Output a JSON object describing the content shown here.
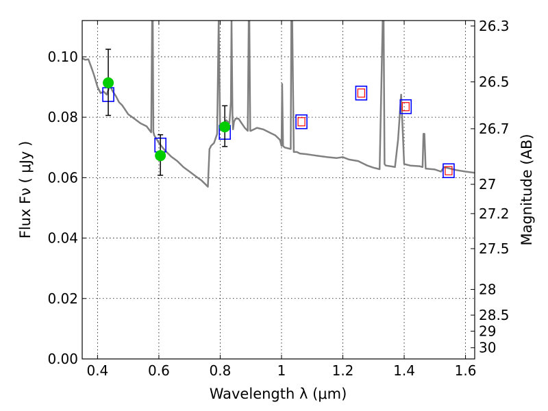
{
  "chart_data": {
    "type": "scatter",
    "xlabel": "Wavelength  λ (μm)",
    "ylabel": "Flux  Fν  ( μJy )",
    "ylabel_right": "Magnitude (AB)",
    "xlim": [
      0.35,
      1.63
    ],
    "ylim": [
      0.0,
      0.112
    ],
    "grid": true,
    "x_ticks": [
      0.4,
      0.6,
      0.8,
      1.0,
      1.2,
      1.4,
      1.6
    ],
    "x_tick_labels": [
      "0.4",
      "0.6",
      "0.8",
      "1",
      "1.2",
      "1.4",
      "1.6"
    ],
    "y_ticks": [
      0.0,
      0.02,
      0.04,
      0.06,
      0.08,
      0.1
    ],
    "y_tick_labels": [
      "0.00",
      "0.02",
      "0.04",
      "0.06",
      "0.08",
      "0.10"
    ],
    "right_ticks": [
      {
        "label": "26.3",
        "flux": 0.1102
      },
      {
        "label": "26.5",
        "flux": 0.0917
      },
      {
        "label": "26.7",
        "flux": 0.0762
      },
      {
        "label": "27",
        "flux": 0.0578
      },
      {
        "label": "27.2",
        "flux": 0.0481
      },
      {
        "label": "27.5",
        "flux": 0.0365
      },
      {
        "label": "28",
        "flux": 0.023
      },
      {
        "label": "28.5",
        "flux": 0.0145
      },
      {
        "label": "29",
        "flux": 0.0092
      },
      {
        "label": "30",
        "flux": 0.0037
      }
    ],
    "series": [
      {
        "kind": "model_spectrum",
        "color": "#808080",
        "x": [
          0.35,
          0.36,
          0.37,
          0.38,
          0.385,
          0.39,
          0.4,
          0.41,
          0.42,
          0.43,
          0.44,
          0.45,
          0.46,
          0.47,
          0.48,
          0.49,
          0.5,
          0.52,
          0.54,
          0.56,
          0.575,
          0.578,
          0.58,
          0.582,
          0.585,
          0.6,
          0.62,
          0.64,
          0.66,
          0.68,
          0.7,
          0.72,
          0.74,
          0.75,
          0.76,
          0.762,
          0.765,
          0.768,
          0.77,
          0.78,
          0.79,
          0.795,
          0.8,
          0.81,
          0.82,
          0.83,
          0.835,
          0.837,
          0.84,
          0.842,
          0.845,
          0.85,
          0.86,
          0.87,
          0.88,
          0.89,
          0.893,
          0.895,
          0.898,
          0.9,
          0.92,
          0.94,
          0.96,
          0.98,
          0.995,
          1.0,
          1.002,
          1.005,
          1.01,
          1.03,
          1.032,
          1.035,
          1.04,
          1.05,
          1.06,
          1.08,
          1.1,
          1.12,
          1.15,
          1.18,
          1.2,
          1.22,
          1.25,
          1.28,
          1.3,
          1.32,
          1.33,
          1.333,
          1.336,
          1.34,
          1.36,
          1.37,
          1.38,
          1.39,
          1.4,
          1.42,
          1.45,
          1.46,
          1.463,
          1.466,
          1.47,
          1.5,
          1.52,
          1.53,
          1.55,
          1.57,
          1.6,
          1.63
        ],
        "y": [
          0.0995,
          0.099,
          0.0992,
          0.0965,
          0.095,
          0.0935,
          0.09,
          0.088,
          0.0885,
          0.0875,
          0.0905,
          0.0885,
          0.087,
          0.085,
          0.084,
          0.0825,
          0.081,
          0.0795,
          0.078,
          0.077,
          0.075,
          0.112,
          0.112,
          0.0752,
          0.074,
          0.0715,
          0.069,
          0.067,
          0.0655,
          0.0635,
          0.062,
          0.0605,
          0.059,
          0.058,
          0.057,
          0.062,
          0.0695,
          0.07,
          0.0705,
          0.0715,
          0.0745,
          0.112,
          0.0757,
          0.077,
          0.079,
          0.078,
          0.085,
          0.112,
          0.0805,
          0.076,
          0.0785,
          0.0795,
          0.0795,
          0.078,
          0.0765,
          0.0755,
          0.112,
          0.112,
          0.0755,
          0.0755,
          0.0765,
          0.076,
          0.075,
          0.074,
          0.0725,
          0.0705,
          0.091,
          0.0705,
          0.07,
          0.0695,
          0.112,
          0.112,
          0.0685,
          0.0685,
          0.068,
          0.0678,
          0.0675,
          0.0672,
          0.0668,
          0.0665,
          0.0668,
          0.066,
          0.0655,
          0.064,
          0.0633,
          0.0628,
          0.112,
          0.112,
          0.0645,
          0.064,
          0.0637,
          0.0635,
          0.0725,
          0.0875,
          0.0645,
          0.064,
          0.0638,
          0.0635,
          0.0745,
          0.0745,
          0.063,
          0.0627,
          0.062,
          0.0635,
          0.063,
          0.0625,
          0.062,
          0.0616
        ]
      },
      {
        "kind": "model_bandpass",
        "marker": "open-square",
        "color": "#0000ff",
        "x": [
          0.435,
          0.605,
          0.815,
          1.065,
          1.26,
          1.405,
          1.545
        ],
        "y": [
          0.0875,
          0.0708,
          0.075,
          0.0785,
          0.088,
          0.0835,
          0.0623
        ]
      },
      {
        "kind": "upper_limit_inner",
        "marker": "open-square-small",
        "color": "#ff0000",
        "x": [
          1.065,
          1.26,
          1.405,
          1.545
        ],
        "y": [
          0.0785,
          0.088,
          0.0835,
          0.0623
        ]
      },
      {
        "kind": "observed",
        "marker": "filled-circle",
        "color": "#00cc00",
        "x": [
          0.435,
          0.605,
          0.815
        ],
        "y": [
          0.0914,
          0.0673,
          0.0768
        ],
        "yerr_low": [
          0.0806,
          0.0608,
          0.0703
        ],
        "yerr_high": [
          0.1025,
          0.0742,
          0.0838
        ]
      }
    ]
  }
}
